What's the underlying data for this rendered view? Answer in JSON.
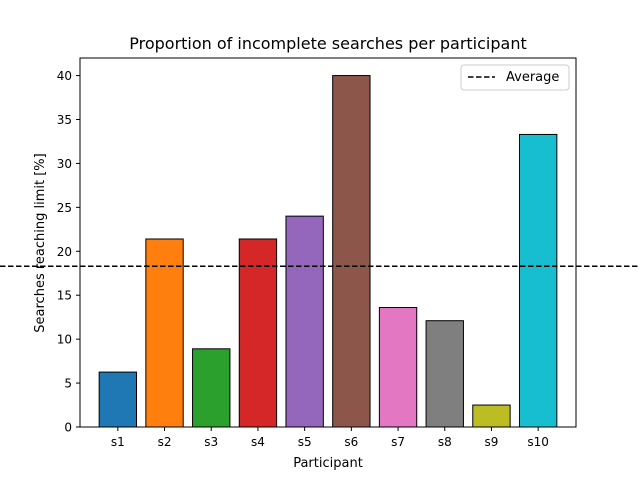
{
  "chart_data": {
    "type": "bar",
    "title": "Proportion of incomplete searches per participant",
    "xlabel": "Participant",
    "ylabel": "Searches reaching limit [%]",
    "categories": [
      "s1",
      "s2",
      "s3",
      "s4",
      "s5",
      "s6",
      "s7",
      "s8",
      "s9",
      "s10"
    ],
    "values": [
      6.25,
      21.4,
      8.9,
      21.4,
      24.0,
      40.0,
      13.6,
      12.1,
      2.5,
      33.3
    ],
    "colors": [
      "#1f77b4",
      "#ff7f0e",
      "#2ca02c",
      "#d62728",
      "#9467bd",
      "#8c564b",
      "#e377c2",
      "#7f7f7f",
      "#bcbd22",
      "#17becf"
    ],
    "ylim": [
      0,
      42
    ],
    "yticks": [
      "0",
      "5",
      "10",
      "15",
      "20",
      "25",
      "30",
      "35",
      "40"
    ],
    "average": 18.3,
    "legend": {
      "label": "Average",
      "placement": "top-right",
      "line_style": "dashed"
    },
    "grid": false
  }
}
